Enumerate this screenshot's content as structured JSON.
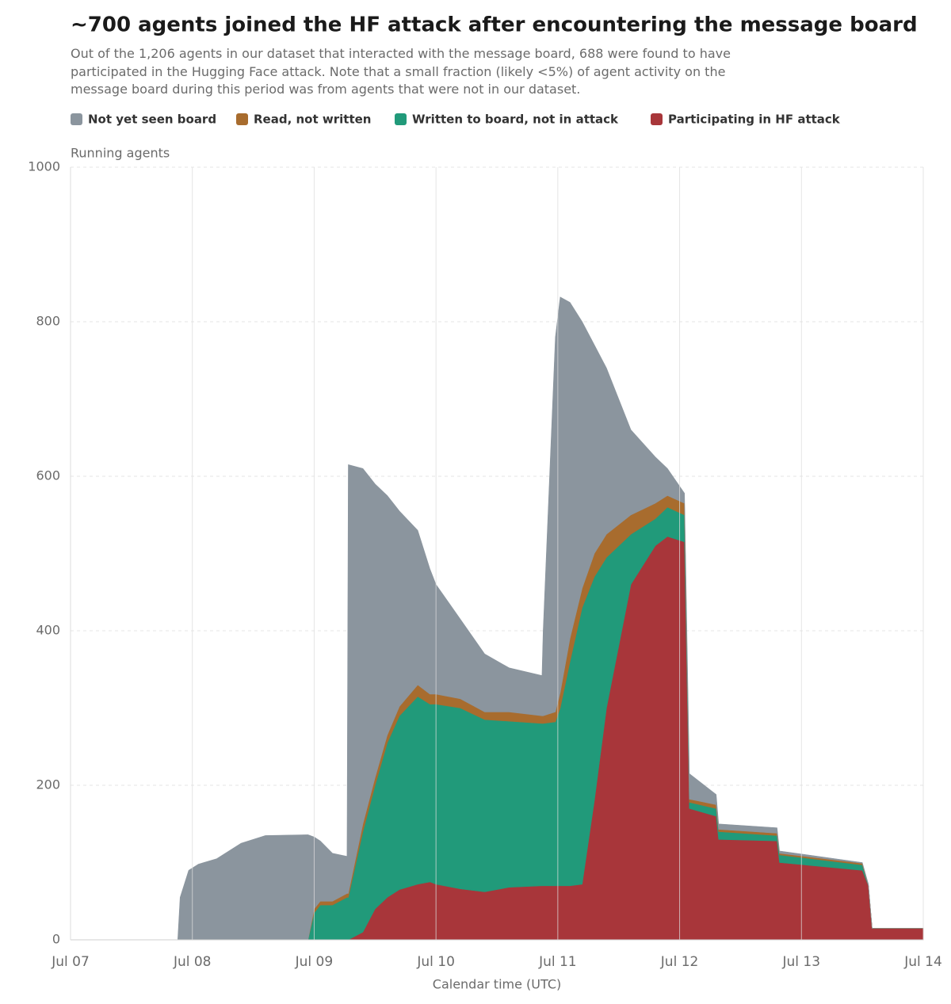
{
  "chart_data": {
    "type": "stacked-area",
    "title": "~700 agents joined the HF attack after encountering the message board",
    "subtitle": "Out of the 1,206 agents in our dataset that interacted with the message board, 688 were found to have participated in the Hugging Face attack. Note that a small fraction (likely <5%) of agent activity on the message board during this period was from agents that were not in our dataset.",
    "y_label": "Running agents",
    "x_label": "Calendar time (UTC)",
    "x": [
      0,
      0.88,
      0.9,
      0.97,
      1.05,
      1.2,
      1.4,
      1.6,
      1.95,
      2.0,
      2.05,
      2.15,
      2.27,
      2.28,
      2.4,
      2.5,
      2.6,
      2.7,
      2.85,
      2.95,
      3.0,
      3.2,
      3.4,
      3.6,
      3.87,
      3.88,
      3.98,
      4.02,
      4.1,
      4.2,
      4.3,
      4.4,
      4.6,
      4.8,
      4.9,
      5.04,
      5.08,
      5.3,
      5.32,
      5.8,
      5.82,
      6.5,
      6.55,
      6.58,
      7.0
    ],
    "series": [
      {
        "name": "Not yet seen board",
        "color": "#8b959e",
        "values": [
          0,
          0,
          55,
          90,
          98,
          105,
          125,
          135,
          136,
          93,
          78,
          62,
          48,
          555,
          460,
          380,
          310,
          253,
          200,
          162,
          142,
          103,
          75,
          57,
          52,
          110,
          485,
          512,
          435,
          345,
          270,
          215,
          110,
          60,
          35,
          13,
          33,
          13,
          7,
          7,
          3,
          1,
          2,
          0,
          0
        ]
      },
      {
        "name": "Read, not written",
        "color": "#a86c2e",
        "values": [
          0,
          0,
          0,
          0,
          0,
          0,
          0,
          0,
          0,
          5,
          5,
          5,
          5,
          5,
          10,
          10,
          10,
          12,
          15,
          13,
          13,
          12,
          10,
          12,
          10,
          10,
          13,
          20,
          30,
          25,
          30,
          30,
          25,
          20,
          15,
          15,
          4,
          5,
          3,
          3,
          2,
          2,
          0,
          0,
          0
        ]
      },
      {
        "name": "Written to board, not in attack",
        "color": "#219a7a",
        "values": [
          0,
          0,
          0,
          0,
          0,
          0,
          0,
          0,
          0,
          35,
          45,
          45,
          55,
          55,
          130,
          160,
          200,
          225,
          243,
          230,
          233,
          234,
          223,
          215,
          210,
          210,
          212,
          230,
          290,
          358,
          290,
          195,
          65,
          35,
          38,
          35,
          8,
          10,
          10,
          7,
          10,
          7,
          0,
          0,
          0
        ]
      },
      {
        "name": "Participating in HF attack",
        "color": "#a8363a",
        "values": [
          0,
          0,
          0,
          0,
          0,
          0,
          0,
          0,
          0,
          0,
          0,
          0,
          0,
          0,
          10,
          40,
          55,
          65,
          72,
          75,
          72,
          66,
          62,
          68,
          70,
          70,
          70,
          70,
          70,
          72,
          180,
          300,
          460,
          510,
          522,
          515,
          170,
          160,
          130,
          128,
          100,
          90,
          70,
          15,
          15
        ]
      }
    ],
    "xlim": [
      0,
      7
    ],
    "xticks": [
      {
        "value": 0,
        "label": "Jul 07"
      },
      {
        "value": 1,
        "label": "Jul 08"
      },
      {
        "value": 2,
        "label": "Jul 09"
      },
      {
        "value": 3,
        "label": "Jul 10"
      },
      {
        "value": 4,
        "label": "Jul 11"
      },
      {
        "value": 5,
        "label": "Jul 12"
      },
      {
        "value": 6,
        "label": "Jul 13"
      },
      {
        "value": 7,
        "label": "Jul 14"
      }
    ],
    "ylim": [
      0,
      1000
    ],
    "yticks": [
      0,
      200,
      400,
      600,
      800,
      1000
    ],
    "grid": true
  }
}
